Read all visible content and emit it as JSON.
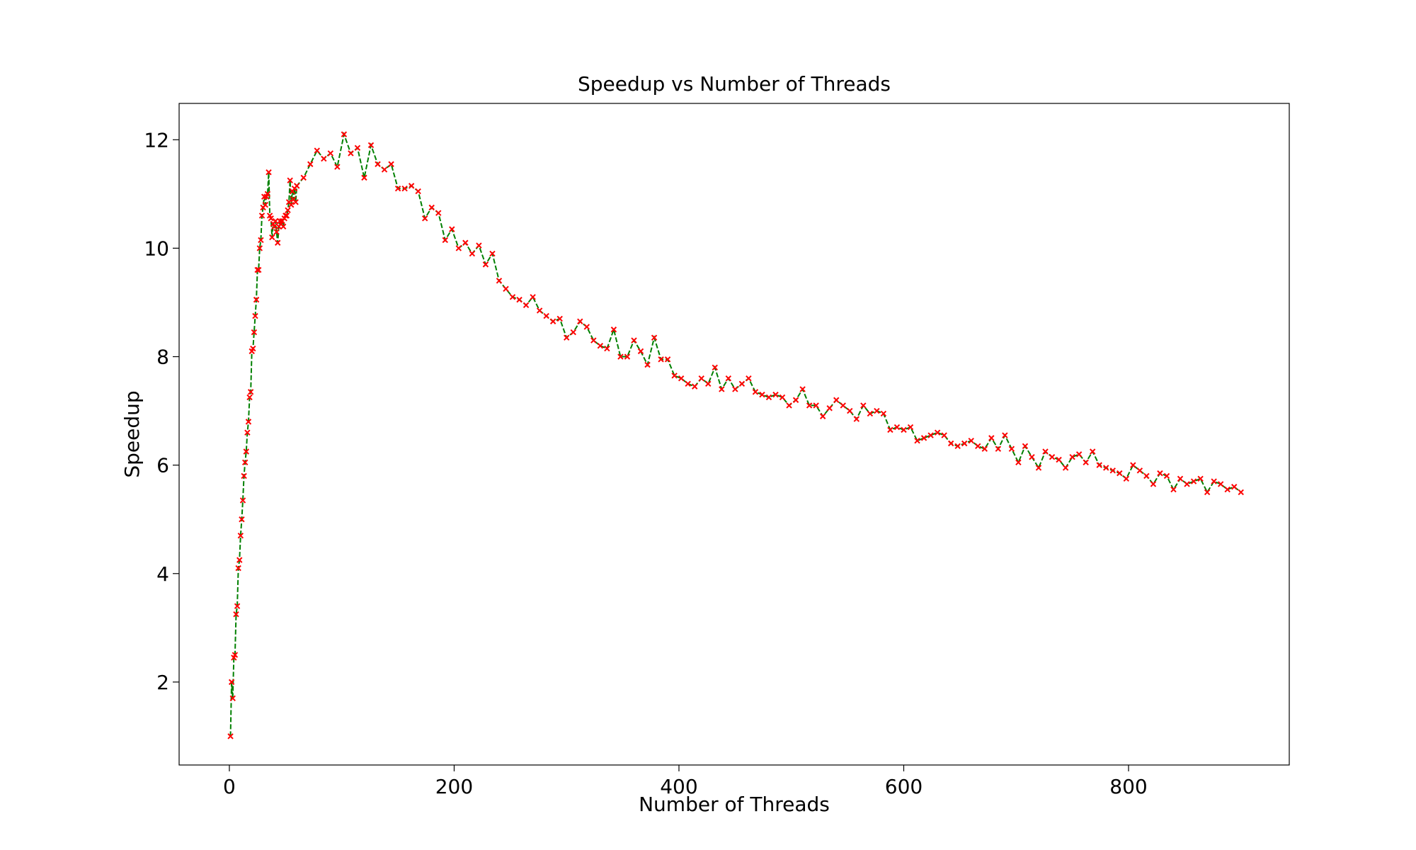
{
  "chart_data": {
    "type": "line",
    "title": "Speedup vs Number of Threads",
    "x_label": "Number of Threads",
    "y_label": "Speedup",
    "x": [
      1,
      2,
      3,
      4,
      5,
      6,
      7,
      8,
      9,
      10,
      11,
      12,
      13,
      14,
      15,
      16,
      17,
      18,
      19,
      20,
      21,
      22,
      23,
      24,
      25,
      26,
      27,
      28,
      29,
      30,
      31,
      32,
      33,
      34,
      35,
      36,
      37,
      38,
      39,
      40,
      41,
      42,
      43,
      44,
      45,
      46,
      47,
      48,
      49,
      50,
      51,
      52,
      53,
      54,
      55,
      56,
      57,
      58,
      59,
      60,
      66,
      72,
      78,
      84,
      90,
      96,
      102,
      108,
      114,
      120,
      126,
      132,
      138,
      144,
      150,
      156,
      162,
      168,
      174,
      180,
      186,
      192,
      198,
      204,
      210,
      216,
      222,
      228,
      234,
      240,
      246,
      252,
      258,
      264,
      270,
      276,
      282,
      288,
      294,
      300,
      306,
      312,
      318,
      324,
      330,
      336,
      342,
      348,
      354,
      360,
      366,
      372,
      378,
      384,
      390,
      396,
      402,
      408,
      414,
      420,
      426,
      432,
      438,
      444,
      450,
      456,
      462,
      468,
      474,
      480,
      486,
      492,
      498,
      504,
      510,
      516,
      522,
      528,
      534,
      540,
      546,
      552,
      558,
      564,
      570,
      576,
      582,
      588,
      594,
      600,
      606,
      612,
      618,
      624,
      630,
      636,
      642,
      648,
      654,
      660,
      666,
      672,
      678,
      684,
      690,
      696,
      702,
      708,
      714,
      720,
      726,
      732,
      738,
      744,
      750,
      756,
      762,
      768,
      774,
      780,
      786,
      792,
      798,
      804,
      810,
      816,
      822,
      828,
      834,
      840,
      846,
      852,
      858,
      864,
      870,
      876,
      882,
      888,
      894,
      900
    ],
    "series": [
      {
        "color": "#008000",
        "marker_color": "#ff0000",
        "linestyle": "dashed",
        "marker": "x",
        "values": [
          1.0,
          2.0,
          1.7,
          2.45,
          2.5,
          3.25,
          3.4,
          4.1,
          4.25,
          4.7,
          5.0,
          5.35,
          5.8,
          6.05,
          6.25,
          6.6,
          6.8,
          7.25,
          7.35,
          8.1,
          8.15,
          8.45,
          8.75,
          9.05,
          9.6,
          9.6,
          10.0,
          10.15,
          10.6,
          10.75,
          10.95,
          10.8,
          10.95,
          11.0,
          11.4,
          10.6,
          10.55,
          10.2,
          10.45,
          10.4,
          10.5,
          10.3,
          10.1,
          10.4,
          10.5,
          10.45,
          10.5,
          10.4,
          10.55,
          10.6,
          10.6,
          10.7,
          10.85,
          11.25,
          10.8,
          11.05,
          10.9,
          11.1,
          10.85,
          11.15,
          11.3,
          11.55,
          11.8,
          11.65,
          11.75,
          11.5,
          12.1,
          11.75,
          11.85,
          11.3,
          11.9,
          11.55,
          11.45,
          11.55,
          11.1,
          11.1,
          11.15,
          11.05,
          10.55,
          10.75,
          10.65,
          10.15,
          10.35,
          10.0,
          10.1,
          9.9,
          10.05,
          9.7,
          9.9,
          9.4,
          9.25,
          9.1,
          9.05,
          8.95,
          9.1,
          8.85,
          8.75,
          8.65,
          8.7,
          8.35,
          8.45,
          8.65,
          8.55,
          8.3,
          8.2,
          8.15,
          8.5,
          8.0,
          8.0,
          8.3,
          8.1,
          7.85,
          8.35,
          7.95,
          7.95,
          7.65,
          7.6,
          7.5,
          7.45,
          7.6,
          7.5,
          7.8,
          7.4,
          7.6,
          7.4,
          7.5,
          7.6,
          7.35,
          7.3,
          7.25,
          7.3,
          7.25,
          7.1,
          7.2,
          7.4,
          7.1,
          7.1,
          6.9,
          7.05,
          7.2,
          7.1,
          7.0,
          6.85,
          7.1,
          6.95,
          7.0,
          6.95,
          6.65,
          6.7,
          6.65,
          6.7,
          6.45,
          6.5,
          6.55,
          6.6,
          6.55,
          6.4,
          6.35,
          6.4,
          6.45,
          6.35,
          6.3,
          6.5,
          6.3,
          6.55,
          6.3,
          6.05,
          6.35,
          6.15,
          5.95,
          6.25,
          6.15,
          6.1,
          5.95,
          6.15,
          6.2,
          6.05,
          6.25,
          6.0,
          5.95,
          5.9,
          5.85,
          5.75,
          6.0,
          5.9,
          5.8,
          5.65,
          5.85,
          5.8,
          5.55,
          5.75,
          5.65,
          5.7,
          5.75,
          5.5,
          5.7,
          5.65,
          5.55,
          5.6,
          5.5
        ]
      }
    ],
    "xlim": [
      -44.7,
      943
    ],
    "ylim": [
      0.47,
      12.67
    ],
    "xticks": [
      0,
      200,
      400,
      600,
      800
    ],
    "yticks": [
      2,
      4,
      6,
      8,
      10,
      12
    ],
    "grid": false
  }
}
